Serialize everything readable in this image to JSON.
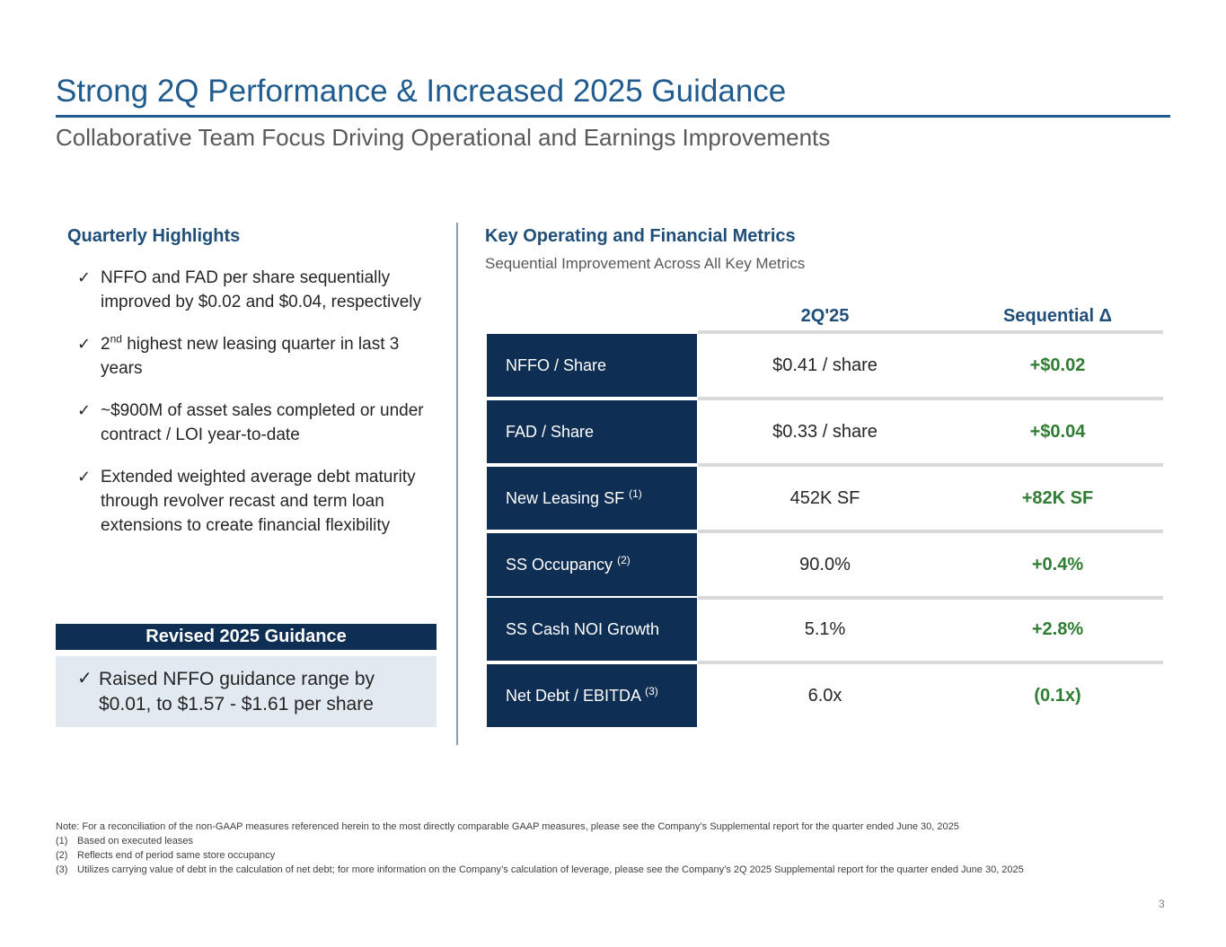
{
  "header": {
    "title": "Strong 2Q Performance & Increased 2025 Guidance",
    "subtitle": "Collaborative Team Focus Driving Operational and Earnings Improvements"
  },
  "highlights": {
    "heading": "Quarterly Highlights",
    "items": [
      {
        "text": "NFFO and FAD per share sequentially improved by $0.02 and $0.04, respectively"
      },
      {
        "pre": "2",
        "sup": "nd",
        "text": " highest new leasing quarter in last 3 years"
      },
      {
        "text": "~$900M of asset sales completed or under contract / LOI year-to-date"
      },
      {
        "text": "Extended weighted average debt maturity through revolver recast and term loan extensions to create financial flexibility"
      }
    ]
  },
  "guidance": {
    "heading": "Revised 2025 Guidance",
    "line1": "Raised NFFO guidance range by",
    "line2": "$0.01, to  $1.57 - $1.61 per share"
  },
  "metrics": {
    "heading": "Key Operating and Financial Metrics",
    "subheading": "Sequential Improvement Across All Key Metrics",
    "col_value": "2Q'25",
    "col_delta": "Sequential Δ",
    "rows": [
      {
        "label": "NFFO / Share",
        "note": "",
        "value": "$0.41 / share",
        "delta": "+$0.02"
      },
      {
        "label": "FAD / Share",
        "note": "",
        "value": "$0.33 / share",
        "delta": "+$0.04"
      },
      {
        "label": "New Leasing SF",
        "note": "(1)",
        "value": "452K SF",
        "delta": "+82K SF"
      },
      {
        "label": "SS Occupancy",
        "note": "(2)",
        "value": "90.0%",
        "delta": "+0.4%"
      },
      {
        "label": "SS Cash NOI Growth",
        "note": "",
        "value": "5.1%",
        "delta": "+2.8%"
      },
      {
        "label": "Net Debt / EBITDA",
        "note": "(3)",
        "value": "6.0x",
        "delta": "(0.1x)"
      }
    ]
  },
  "notes": {
    "main": "Note: For a reconciliation of the non-GAAP measures referenced herein to the most directly comparable GAAP measures, please see the Company’s Supplemental report for the quarter ended June 30, 2025",
    "footnotes": [
      {
        "num": "(1)",
        "text": "Based on executed leases"
      },
      {
        "num": "(2)",
        "text": "Reflects end of period same store occupancy"
      },
      {
        "num": "(3)",
        "text": "Utilizes carrying value of debt in the calculation of net debt; for more information on the Company’s calculation of leverage, please see the Company’s 2Q 2025 Supplemental report for the quarter ended June 30, 2025"
      }
    ]
  },
  "page_number": "3",
  "colors": {
    "title": "#1f5b8f",
    "navy": "#0f2e53",
    "positive": "#2e7d32",
    "guidance_bg": "#e1e9f1"
  }
}
